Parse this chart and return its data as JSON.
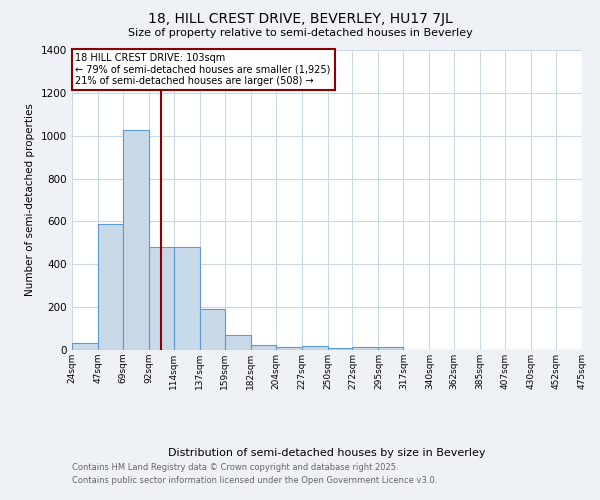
{
  "title_line1": "18, HILL CREST DRIVE, BEVERLEY, HU17 7JL",
  "title_line2": "Size of property relative to semi-detached houses in Beverley",
  "xlabel": "Distribution of semi-detached houses by size in Beverley",
  "ylabel": "Number of semi-detached properties",
  "bins": [
    24,
    47,
    69,
    92,
    114,
    137,
    159,
    182,
    204,
    227,
    250,
    272,
    295,
    317,
    340,
    362,
    385,
    407,
    430,
    452,
    475
  ],
  "counts": [
    35,
    590,
    1025,
    480,
    480,
    190,
    70,
    25,
    15,
    20,
    10,
    15,
    15,
    0,
    0,
    0,
    0,
    0,
    0,
    0
  ],
  "bar_color": "#c8d9e8",
  "bar_edge_color": "#5b9bd5",
  "property_size": 103,
  "property_line_color": "#8b0000",
  "annotation_text": "18 HILL CREST DRIVE: 103sqm\n← 79% of semi-detached houses are smaller (1,925)\n21% of semi-detached houses are larger (508) →",
  "annotation_box_color": "#8b0000",
  "ylim": [
    0,
    1400
  ],
  "yticks": [
    0,
    200,
    400,
    600,
    800,
    1000,
    1200,
    1400
  ],
  "tick_labels": [
    "24sqm",
    "47sqm",
    "69sqm",
    "92sqm",
    "114sqm",
    "137sqm",
    "159sqm",
    "182sqm",
    "204sqm",
    "227sqm",
    "250sqm",
    "272sqm",
    "295sqm",
    "317sqm",
    "340sqm",
    "362sqm",
    "385sqm",
    "407sqm",
    "430sqm",
    "452sqm",
    "475sqm"
  ],
  "footer_line1": "Contains HM Land Registry data © Crown copyright and database right 2025.",
  "footer_line2": "Contains public sector information licensed under the Open Government Licence v3.0.",
  "bg_color": "#eef2f7",
  "plot_bg_color": "#ffffff",
  "grid_color": "#c8d9e8"
}
